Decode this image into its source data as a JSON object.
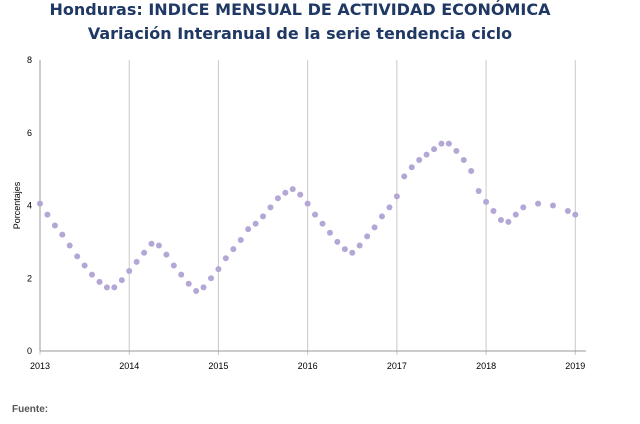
{
  "chart_data": {
    "type": "scatter",
    "title": "Honduras: INDICE MENSUAL DE ACTIVIDAD ECONÓMICA",
    "subtitle": "Variación Interanual de la serie tendencia ciclo",
    "xlabel": "",
    "ylabel": "Porcentajes",
    "ylim": [
      0,
      8
    ],
    "yticks": [
      "0",
      "2",
      "4",
      "6",
      "8"
    ],
    "xticks": [
      "2013",
      "2014",
      "2015",
      "2016",
      "2017",
      "2018",
      "2019"
    ],
    "grid": "vertical",
    "legend": "none",
    "marker_color": "#b4a7d6",
    "series": [
      {
        "x": [
          2013.0,
          2013.083,
          2013.167,
          2013.25,
          2013.333,
          2013.417,
          2013.5,
          2013.583,
          2013.667,
          2013.75,
          2013.833,
          2013.917,
          2014.0,
          2014.083,
          2014.167,
          2014.25,
          2014.333,
          2014.417,
          2014.5,
          2014.583,
          2014.667,
          2014.75,
          2014.833,
          2014.917,
          2015.0,
          2015.083,
          2015.167,
          2015.25,
          2015.333,
          2015.417,
          2015.5,
          2015.583,
          2015.667,
          2015.75,
          2015.833,
          2015.917,
          2016.0,
          2016.083,
          2016.167,
          2016.25,
          2016.333,
          2016.417,
          2016.5,
          2016.583,
          2016.667,
          2016.75,
          2016.833,
          2016.917,
          2017.0,
          2017.083,
          2017.167,
          2017.25,
          2017.333,
          2017.417,
          2017.5,
          2017.583,
          2017.667,
          2017.75,
          2017.833,
          2017.917,
          2018.0,
          2018.083,
          2018.167,
          2018.25,
          2018.333,
          2018.417,
          2018.583,
          2018.75,
          2018.917,
          2019.0
        ],
        "y": [
          4.05,
          3.75,
          3.45,
          3.2,
          2.9,
          2.6,
          2.35,
          2.1,
          1.9,
          1.75,
          1.75,
          1.95,
          2.2,
          2.45,
          2.7,
          2.95,
          2.9,
          2.65,
          2.35,
          2.1,
          1.85,
          1.65,
          1.75,
          2.0,
          2.25,
          2.55,
          2.8,
          3.05,
          3.35,
          3.5,
          3.7,
          3.95,
          4.2,
          4.35,
          4.45,
          4.3,
          4.05,
          3.75,
          3.5,
          3.25,
          3.0,
          2.8,
          2.7,
          2.9,
          3.15,
          3.4,
          3.7,
          3.95,
          4.25,
          4.8,
          5.05,
          5.25,
          5.4,
          5.55,
          5.7,
          5.7,
          5.5,
          5.25,
          4.95,
          4.4,
          4.1,
          3.85,
          3.6,
          3.55,
          3.75,
          3.95,
          4.05,
          4.0,
          3.85,
          3.75
        ]
      }
    ]
  },
  "footer": {
    "source_label": "Fuente:"
  }
}
